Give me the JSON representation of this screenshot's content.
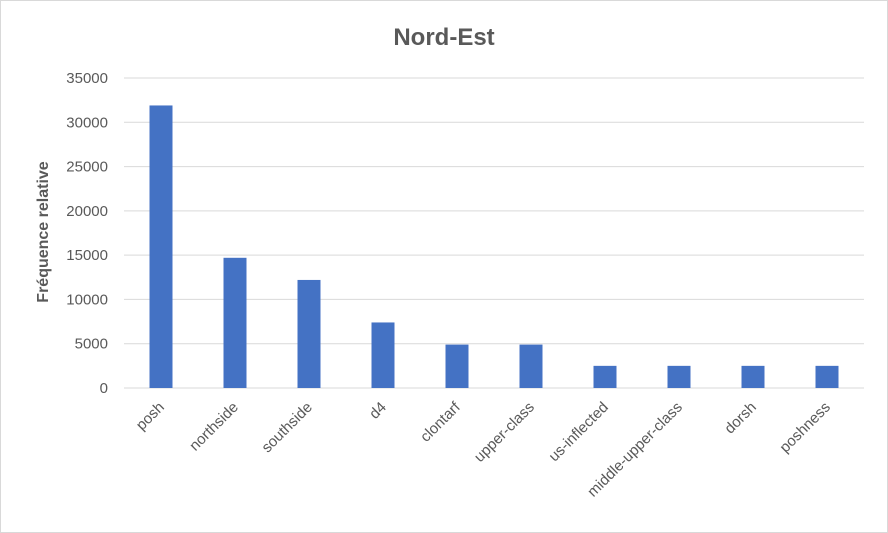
{
  "chart_data": {
    "type": "bar",
    "title": "Nord-Est",
    "xlabel": "",
    "ylabel": "Fréquence relative",
    "ylim": [
      0,
      35000
    ],
    "yticks": [
      0,
      5000,
      10000,
      15000,
      20000,
      25000,
      30000,
      35000
    ],
    "grid": true,
    "legend": "none",
    "bar_color": "#4472C4",
    "grid_color": "#d9d9d9",
    "categories": [
      "posh",
      "northside",
      "southside",
      "d4",
      "clontarf",
      "upper-class",
      "us-inflected",
      "middle-upper-class",
      "dorsh",
      "poshness"
    ],
    "series": [
      {
        "values": [
          31900,
          14700,
          12200,
          7400,
          4900,
          4900,
          2500,
          2500,
          2500,
          2500
        ]
      }
    ]
  }
}
